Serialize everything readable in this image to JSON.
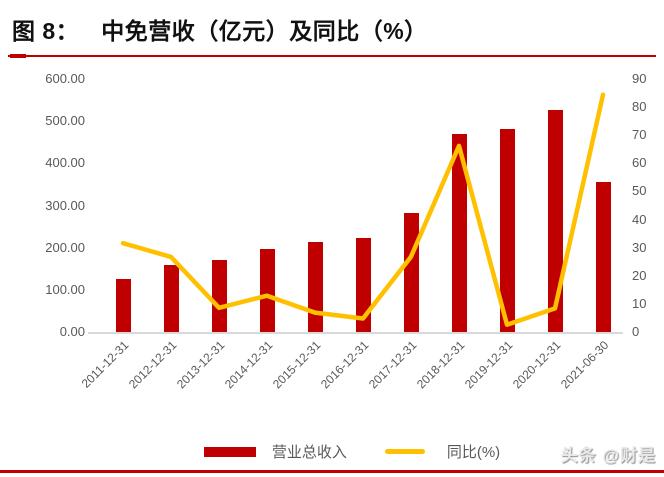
{
  "header": {
    "figure_label": "图 8：",
    "title": "中免营收（亿元）及同比（%）"
  },
  "legend": {
    "bar_label": "营业总收入",
    "line_label": "同比(%)"
  },
  "footer": {
    "watermark": "头条 @财是"
  },
  "colors": {
    "accent_rule": "#C00000",
    "bar": "#C00000",
    "line": "#FFC000",
    "axis_text": "#595959",
    "baseline": "#D9D9D9"
  },
  "chart_data": {
    "type": "bar+line",
    "title": "中免营收（亿元）及同比（%）",
    "categories": [
      "2011-12-31",
      "2012-12-31",
      "2013-12-31",
      "2014-12-31",
      "2015-12-31",
      "2016-12-31",
      "2017-12-31",
      "2018-12-31",
      "2019-12-31",
      "2020-12-31",
      "2021-06-30"
    ],
    "series": [
      {
        "name": "营业总收入",
        "type": "bar",
        "axis": "left",
        "unit": "亿元",
        "color": "#C00000",
        "values": [
          126,
          159,
          172,
          197,
          213,
          224,
          282,
          470,
          481,
          527,
          355
        ]
      },
      {
        "name": "同比(%)",
        "type": "line",
        "axis": "right",
        "unit": "%",
        "color": "#FFC000",
        "values": [
          31.6,
          26.7,
          8.6,
          12.9,
          6.9,
          4.8,
          26.8,
          66.2,
          2.6,
          8.4,
          84.4
        ]
      }
    ],
    "left_axis": {
      "min": 0,
      "max": 600,
      "step": 100,
      "tick_labels": [
        "600.00",
        "500.00",
        "400.00",
        "300.00",
        "200.00",
        "100.00",
        "0.00"
      ]
    },
    "right_axis": {
      "min": 0,
      "max": 90,
      "step": 10,
      "tick_labels": [
        "90",
        "80",
        "70",
        "60",
        "50",
        "40",
        "30",
        "20",
        "10",
        "0"
      ]
    },
    "grid": false,
    "legend_position": "bottom"
  }
}
